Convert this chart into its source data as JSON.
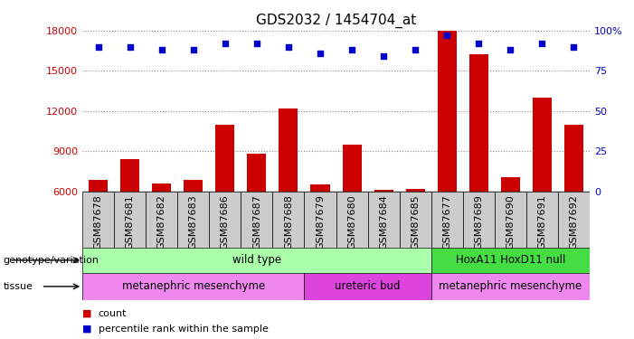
{
  "title": "GDS2032 / 1454704_at",
  "samples": [
    "GSM87678",
    "GSM87681",
    "GSM87682",
    "GSM87683",
    "GSM87686",
    "GSM87687",
    "GSM87688",
    "GSM87679",
    "GSM87680",
    "GSM87684",
    "GSM87685",
    "GSM87677",
    "GSM87689",
    "GSM87690",
    "GSM87691",
    "GSM87692"
  ],
  "counts": [
    6900,
    8400,
    6600,
    6900,
    11000,
    8800,
    12200,
    6500,
    9500,
    6100,
    6200,
    18200,
    16200,
    7100,
    13000,
    11000
  ],
  "percentiles": [
    90,
    90,
    88,
    88,
    92,
    92,
    90,
    86,
    88,
    84,
    88,
    97,
    92,
    88,
    92,
    90
  ],
  "ylim_left": [
    6000,
    18000
  ],
  "yticks_left": [
    6000,
    9000,
    12000,
    15000,
    18000
  ],
  "ylim_right": [
    0,
    100
  ],
  "yticks_right": [
    0,
    25,
    50,
    75,
    100
  ],
  "bar_color": "#cc0000",
  "dot_color": "#0000cc",
  "bar_width": 0.6,
  "genotype_groups": [
    {
      "label": "wild type",
      "start": 0,
      "end": 10,
      "color": "#aaffaa"
    },
    {
      "label": "HoxA11 HoxD11 null",
      "start": 11,
      "end": 15,
      "color": "#44dd44"
    }
  ],
  "tissue_groups": [
    {
      "label": "metanephric mesenchyme",
      "start": 0,
      "end": 6,
      "color": "#ee88ee"
    },
    {
      "label": "ureteric bud",
      "start": 7,
      "end": 10,
      "color": "#dd44dd"
    },
    {
      "label": "metanephric mesenchyme",
      "start": 11,
      "end": 15,
      "color": "#ee88ee"
    }
  ],
  "legend_count_color": "#cc0000",
  "legend_pct_color": "#0000cc",
  "left_axis_color": "#cc0000",
  "right_axis_color": "#0000cc",
  "grid_color": "#888888",
  "sample_bg_color": "#cccccc",
  "label_fontsize": 8.5,
  "tick_fontsize": 8,
  "title_fontsize": 11
}
